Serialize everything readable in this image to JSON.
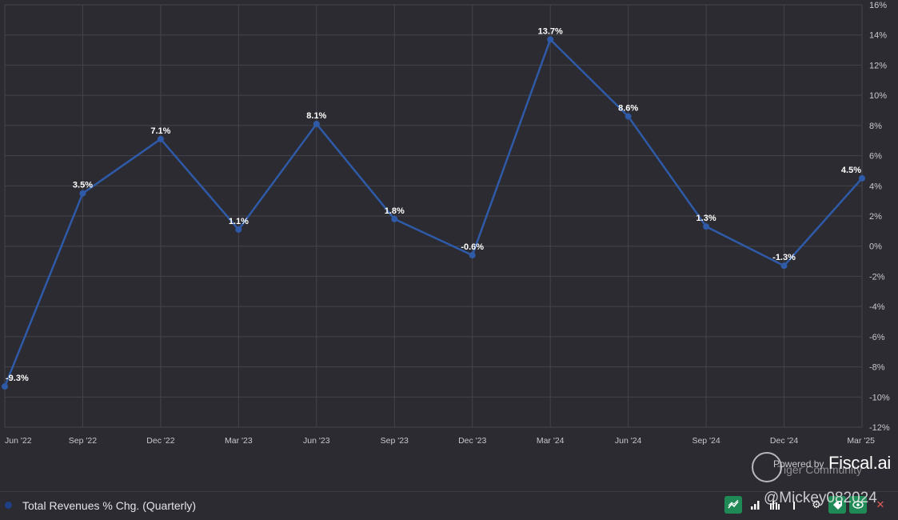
{
  "chart_data": {
    "type": "line",
    "x": [
      "Jun '22",
      "Sep '22",
      "Dec '22",
      "Mar '23",
      "Jun '23",
      "Sep '23",
      "Dec '23",
      "Mar '24",
      "Jun '24",
      "Sep '24",
      "Dec '24",
      "Mar '25"
    ],
    "series": [
      {
        "name": "Total Revenues % Chg. (Quarterly)",
        "values": [
          -9.3,
          3.5,
          7.1,
          1.1,
          8.1,
          1.8,
          -0.6,
          13.7,
          8.6,
          1.3,
          -1.3,
          4.5
        ],
        "labels": [
          "-9.3%",
          "3.5%",
          "7.1%",
          "1.1%",
          "8.1%",
          "1.8%",
          "-0.6%",
          "13.7%",
          "8.6%",
          "1.3%",
          "-1.3%",
          "4.5%"
        ],
        "color": "#2f5aa8"
      }
    ],
    "ylim": [
      -12,
      16
    ],
    "yticks": [
      16,
      14,
      12,
      10,
      8,
      6,
      4,
      2,
      0,
      -2,
      -4,
      -6,
      -8,
      -10,
      -12
    ],
    "ytick_labels": [
      "16%",
      "14%",
      "12%",
      "10%",
      "8%",
      "6%",
      "4%",
      "2%",
      "0%",
      "-2%",
      "-4%",
      "-6%",
      "-8%",
      "-10%",
      "-12%"
    ],
    "y_axis_side": "right",
    "grid": true,
    "legend_position": "bottom-left"
  },
  "legend": {
    "label": "Total Revenues % Chg. (Quarterly)",
    "color": "#1f3f86"
  },
  "watermark": {
    "powered_by": "Powered by",
    "brand": "Fiscal.ai",
    "community": "Tiger Community",
    "user": "@Mickey082024"
  },
  "toolbar": {
    "icons": [
      "trend-line-icon",
      "bar-chart-icon",
      "grouped-bar-icon",
      "more-bars-icon",
      "gear-icon",
      "tag-icon",
      "eye-icon",
      "close-icon"
    ]
  },
  "colors": {
    "background": "#2b2b31",
    "grid": "#44444c",
    "line": "#2f5aa8",
    "accent_green": "#1f8a55"
  }
}
